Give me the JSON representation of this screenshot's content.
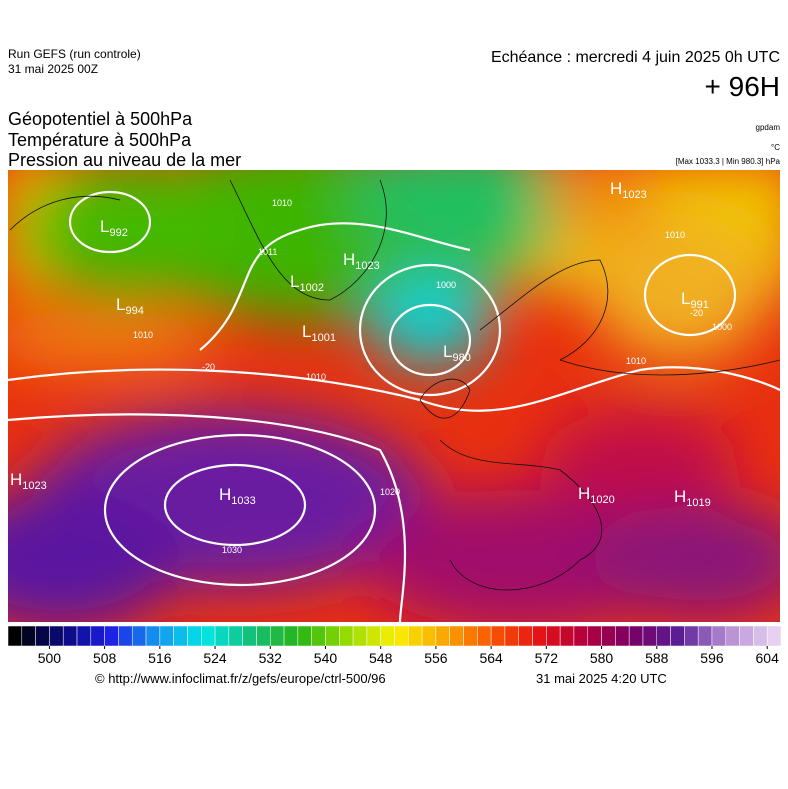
{
  "header": {
    "run": "Run GEFS (run controle)",
    "run_date": "31 mai 2025 00Z",
    "valid": "Echéance : mercredi 4 juin 2025 0h UTC",
    "lead": "+ 96H",
    "fields": [
      "Géopotentiel à 500hPa",
      "Température à 500hPa",
      "Pression au niveau de la mer"
    ],
    "units": [
      "gpdam",
      "°C",
      "[Max 1033.3 | Min 980.3] hPa"
    ]
  },
  "map": {
    "centers": [
      {
        "type": "L",
        "value": "992"
      },
      {
        "type": "L",
        "value": "1002"
      },
      {
        "type": "H",
        "value": "1023"
      },
      {
        "type": "L",
        "value": "994"
      },
      {
        "type": "L",
        "value": "1001"
      },
      {
        "type": "L",
        "value": "980"
      },
      {
        "type": "L",
        "value": "991"
      },
      {
        "type": "H",
        "value": "1023"
      },
      {
        "type": "H",
        "value": "1023"
      },
      {
        "type": "H",
        "value": "1033"
      },
      {
        "type": "H",
        "value": "1020"
      },
      {
        "type": "H",
        "value": "1019"
      }
    ],
    "isobar_labels": [
      "1010",
      "1011",
      "1000",
      "1010",
      "1010",
      "1020",
      "1030",
      "1010",
      "1000",
      "1010",
      "-20",
      "-20"
    ]
  },
  "colorbar": {
    "lim": [
      494,
      606
    ],
    "ticks": [
      500,
      508,
      516,
      524,
      532,
      540,
      548,
      556,
      564,
      572,
      580,
      588,
      596,
      604
    ]
  },
  "footer": {
    "source": "© http://www.infoclimat.fr/z/gefs/europe/ctrl-500/96",
    "time": "31 mai 2025  4:20 UTC"
  }
}
